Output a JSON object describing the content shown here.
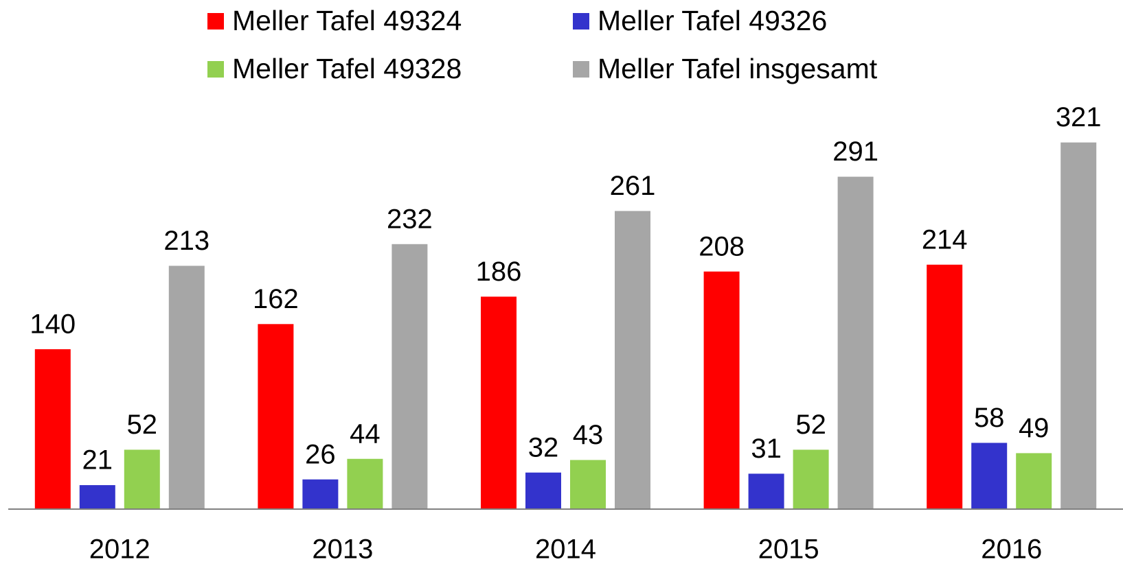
{
  "chart_data": {
    "type": "bar",
    "categories": [
      "2012",
      "2013",
      "2014",
      "2015",
      "2016"
    ],
    "series": [
      {
        "name": "Meller Tafel 49324",
        "color": "#ff0000",
        "values": [
          140,
          162,
          186,
          208,
          214
        ]
      },
      {
        "name": "Meller Tafel 49326",
        "color": "#3333cc",
        "values": [
          21,
          26,
          32,
          31,
          58
        ]
      },
      {
        "name": "Meller Tafel 49328",
        "color": "#92d050",
        "values": [
          52,
          44,
          43,
          52,
          49
        ]
      },
      {
        "name": "Meller Tafel insgesamt",
        "color": "#a6a6a6",
        "values": [
          213,
          232,
          261,
          291,
          321
        ]
      }
    ],
    "ylim": [
      0,
      340
    ],
    "legend": "top"
  }
}
